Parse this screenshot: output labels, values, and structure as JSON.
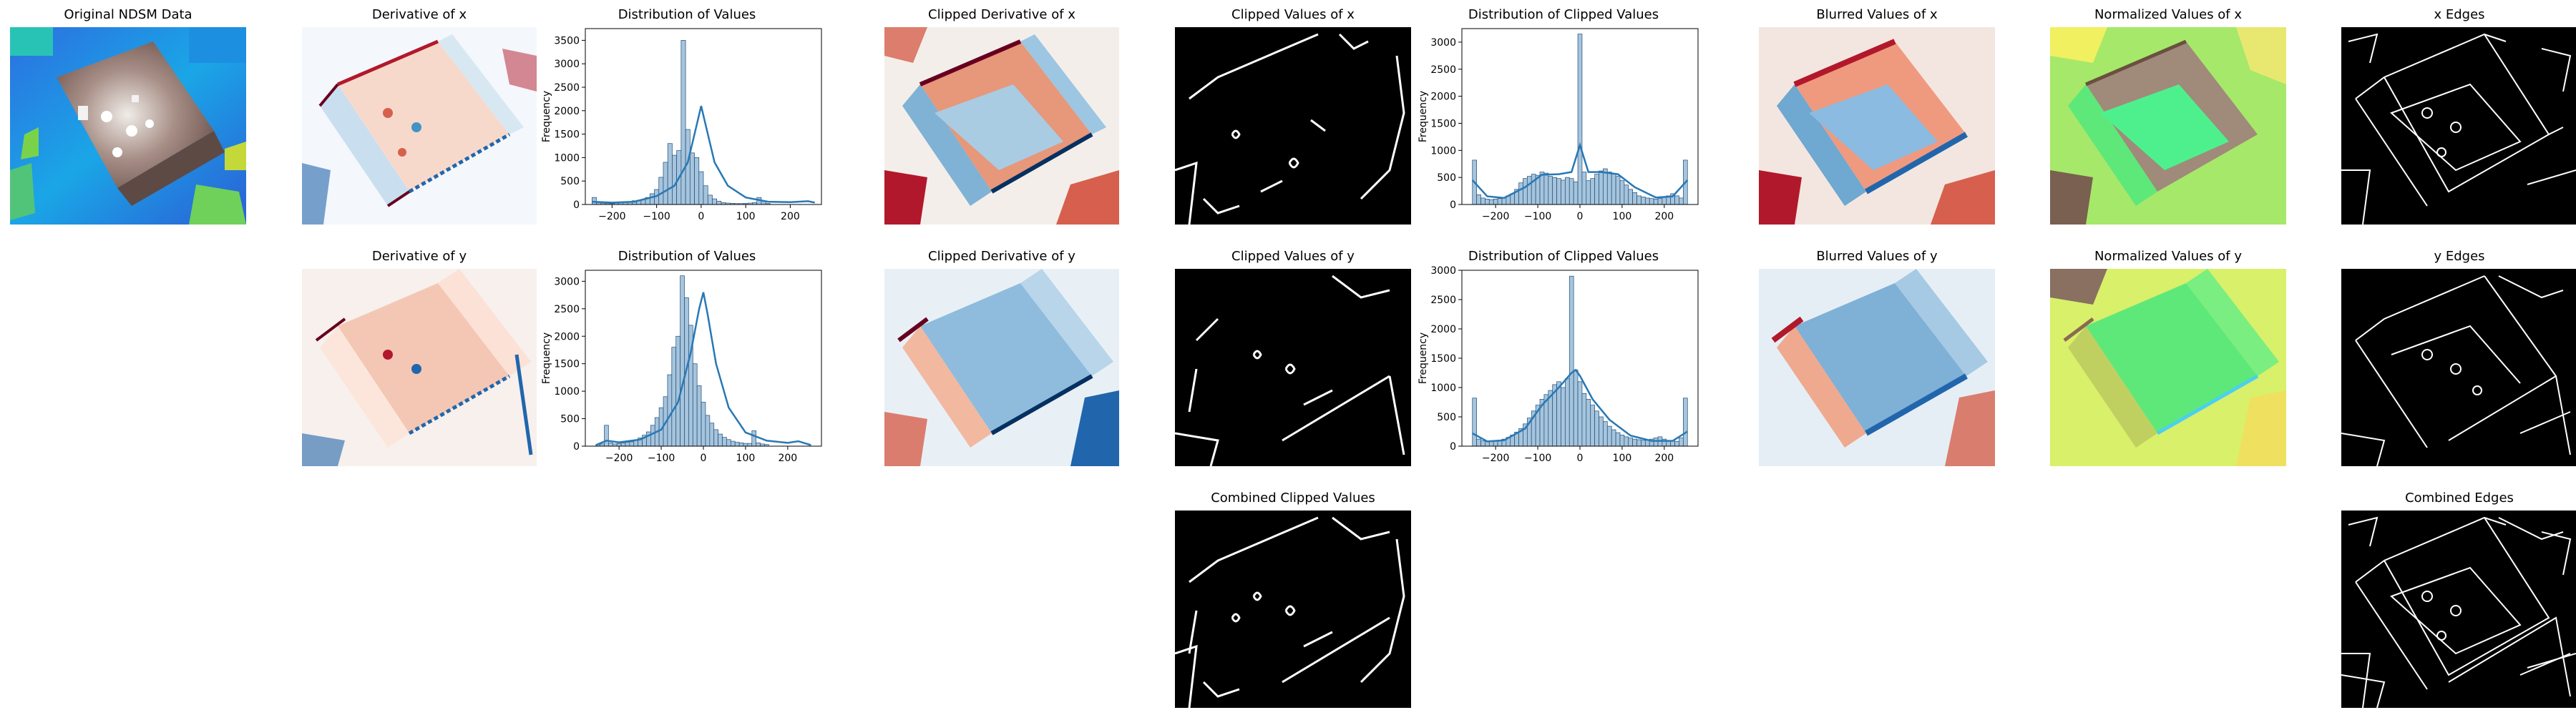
{
  "panels": {
    "original": {
      "title": "Original NDSM Data"
    },
    "deriv_x": {
      "title": "Derivative of x"
    },
    "hist_x": {
      "title": "Distribution of Values"
    },
    "clip_deriv_x": {
      "title": "Clipped Derivative of x"
    },
    "clip_vals_x": {
      "title": "Clipped Values  of x"
    },
    "hist_clip_x": {
      "title": "Distribution of Clipped Values"
    },
    "blur_x": {
      "title": "Blurred Values of x"
    },
    "norm_x": {
      "title": "Normalized Values of x"
    },
    "edges_x": {
      "title": "x Edges"
    },
    "deriv_y": {
      "title": "Derivative of y"
    },
    "hist_y": {
      "title": "Distribution of Values"
    },
    "clip_deriv_y": {
      "title": "Clipped Derivative of y"
    },
    "clip_vals_y": {
      "title": "Clipped Values  of y"
    },
    "hist_clip_y": {
      "title": "Distribution of Clipped Values"
    },
    "blur_y": {
      "title": "Blurred Values of y"
    },
    "norm_y": {
      "title": "Normalized Values of y"
    },
    "edges_y": {
      "title": "y Edges"
    },
    "combined_clip": {
      "title": "Combined Clipped Values"
    },
    "combined_edges": {
      "title": "Combined Edges"
    }
  },
  "colors": {
    "hist_bar": "#a6c4dc",
    "hist_edge": "#1f4e79",
    "kde_line": "#2878b5"
  },
  "chart_data": [
    {
      "id": "hist_x",
      "type": "bar",
      "title": "Distribution of Values",
      "xlabel": "",
      "ylabel": "Frequency",
      "xlim": [
        -260,
        270
      ],
      "ylim": [
        0,
        3750
      ],
      "xticks": [
        -200,
        -100,
        0,
        100,
        200
      ],
      "xtick_labels": [
        "−200",
        "−100",
        "0",
        "100",
        "200"
      ],
      "yticks": [
        0,
        500,
        1000,
        1500,
        2000,
        2500,
        3000,
        3500
      ],
      "bins": {
        "start": -245,
        "width": 10
      },
      "values": [
        150,
        40,
        30,
        25,
        20,
        30,
        35,
        45,
        60,
        80,
        90,
        110,
        150,
        230,
        320,
        580,
        900,
        1300,
        1050,
        1150,
        3500,
        1600,
        1100,
        1000,
        700,
        400,
        200,
        120,
        70,
        40,
        30,
        25,
        20,
        20,
        25,
        30,
        40,
        150,
        80,
        20
      ],
      "kde": [
        [
          -245,
          60
        ],
        [
          -200,
          40
        ],
        [
          -150,
          60
        ],
        [
          -100,
          180
        ],
        [
          -60,
          400
        ],
        [
          -30,
          900
        ],
        [
          -10,
          1700
        ],
        [
          0,
          2100
        ],
        [
          10,
          1700
        ],
        [
          30,
          900
        ],
        [
          60,
          400
        ],
        [
          100,
          150
        ],
        [
          150,
          60
        ],
        [
          200,
          50
        ],
        [
          240,
          70
        ],
        [
          255,
          40
        ]
      ]
    },
    {
      "id": "hist_clip_x",
      "type": "bar",
      "title": "Distribution of Clipped Values",
      "xlabel": "",
      "ylabel": "Frequency",
      "xlim": [
        -280,
        280
      ],
      "ylim": [
        0,
        3250
      ],
      "xticks": [
        -200,
        -100,
        0,
        100,
        200
      ],
      "xtick_labels": [
        "−200",
        "−100",
        "0",
        "100",
        "200"
      ],
      "yticks": [
        0,
        500,
        1000,
        1500,
        2000,
        2500,
        3000
      ],
      "bins": {
        "start": -255,
        "width": 10
      },
      "values": [
        820,
        180,
        120,
        100,
        90,
        100,
        110,
        130,
        160,
        200,
        280,
        400,
        480,
        520,
        560,
        540,
        600,
        580,
        520,
        500,
        480,
        450,
        500,
        480,
        420,
        3150,
        600,
        440,
        480,
        560,
        620,
        660,
        600,
        560,
        520,
        440,
        360,
        280,
        220,
        160,
        140,
        120,
        110,
        100,
        110,
        130,
        160,
        200,
        160,
        120,
        820
      ],
      "kde": [
        [
          -255,
          450
        ],
        [
          -220,
          150
        ],
        [
          -180,
          120
        ],
        [
          -130,
          320
        ],
        [
          -90,
          550
        ],
        [
          -50,
          560
        ],
        [
          -20,
          600
        ],
        [
          0,
          1100
        ],
        [
          20,
          600
        ],
        [
          50,
          600
        ],
        [
          90,
          560
        ],
        [
          130,
          320
        ],
        [
          180,
          130
        ],
        [
          220,
          150
        ],
        [
          255,
          450
        ]
      ]
    },
    {
      "id": "hist_y",
      "type": "bar",
      "title": "Distribution of Values",
      "xlabel": "",
      "ylabel": "Frequency",
      "xlim": [
        -280,
        280
      ],
      "ylim": [
        0,
        3200
      ],
      "xticks": [
        -200,
        -100,
        0,
        100,
        200
      ],
      "xtick_labels": [
        "−200",
        "−100",
        "0",
        "100",
        "200"
      ],
      "yticks": [
        0,
        500,
        1000,
        1500,
        2000,
        2500,
        3000
      ],
      "bins": {
        "start": -255,
        "width": 10
      },
      "values": [
        30,
        40,
        380,
        60,
        40,
        50,
        60,
        70,
        80,
        110,
        150,
        200,
        260,
        380,
        520,
        700,
        900,
        1300,
        1800,
        2000,
        3100,
        2700,
        2200,
        1500,
        1100,
        800,
        560,
        420,
        300,
        220,
        160,
        120,
        90,
        70,
        60,
        50,
        50,
        280,
        60,
        40,
        30
      ],
      "kde": [
        [
          -255,
          20
        ],
        [
          -230,
          100
        ],
        [
          -200,
          70
        ],
        [
          -150,
          120
        ],
        [
          -100,
          300
        ],
        [
          -60,
          800
        ],
        [
          -30,
          1700
        ],
        [
          -10,
          2500
        ],
        [
          0,
          2800
        ],
        [
          10,
          2400
        ],
        [
          30,
          1500
        ],
        [
          60,
          700
        ],
        [
          100,
          250
        ],
        [
          150,
          100
        ],
        [
          200,
          60
        ],
        [
          225,
          90
        ],
        [
          255,
          20
        ]
      ]
    },
    {
      "id": "hist_clip_y",
      "type": "bar",
      "title": "Distribution of Clipped Values",
      "xlabel": "",
      "ylabel": "Frequency",
      "xlim": [
        -280,
        280
      ],
      "ylim": [
        0,
        3000
      ],
      "xticks": [
        -200,
        -100,
        0,
        100,
        200
      ],
      "xtick_labels": [
        "−200",
        "−100",
        "0",
        "100",
        "200"
      ],
      "yticks": [
        0,
        500,
        1000,
        1500,
        2000,
        2500,
        3000
      ],
      "bins": {
        "start": -255,
        "width": 10
      },
      "values": [
        820,
        120,
        90,
        80,
        80,
        90,
        100,
        120,
        150,
        190,
        240,
        300,
        380,
        480,
        600,
        700,
        800,
        880,
        950,
        1050,
        1100,
        1000,
        1150,
        2900,
        1300,
        1100,
        900,
        800,
        700,
        600,
        500,
        420,
        340,
        280,
        230,
        190,
        160,
        140,
        120,
        110,
        100,
        100,
        120,
        140,
        160,
        120,
        100,
        90,
        80,
        140,
        820
      ],
      "kde": [
        [
          -255,
          220
        ],
        [
          -220,
          80
        ],
        [
          -180,
          100
        ],
        [
          -130,
          300
        ],
        [
          -90,
          700
        ],
        [
          -50,
          1000
        ],
        [
          -20,
          1250
        ],
        [
          -10,
          1300
        ],
        [
          0,
          1200
        ],
        [
          30,
          800
        ],
        [
          70,
          450
        ],
        [
          120,
          180
        ],
        [
          170,
          90
        ],
        [
          220,
          90
        ],
        [
          255,
          250
        ]
      ]
    }
  ]
}
